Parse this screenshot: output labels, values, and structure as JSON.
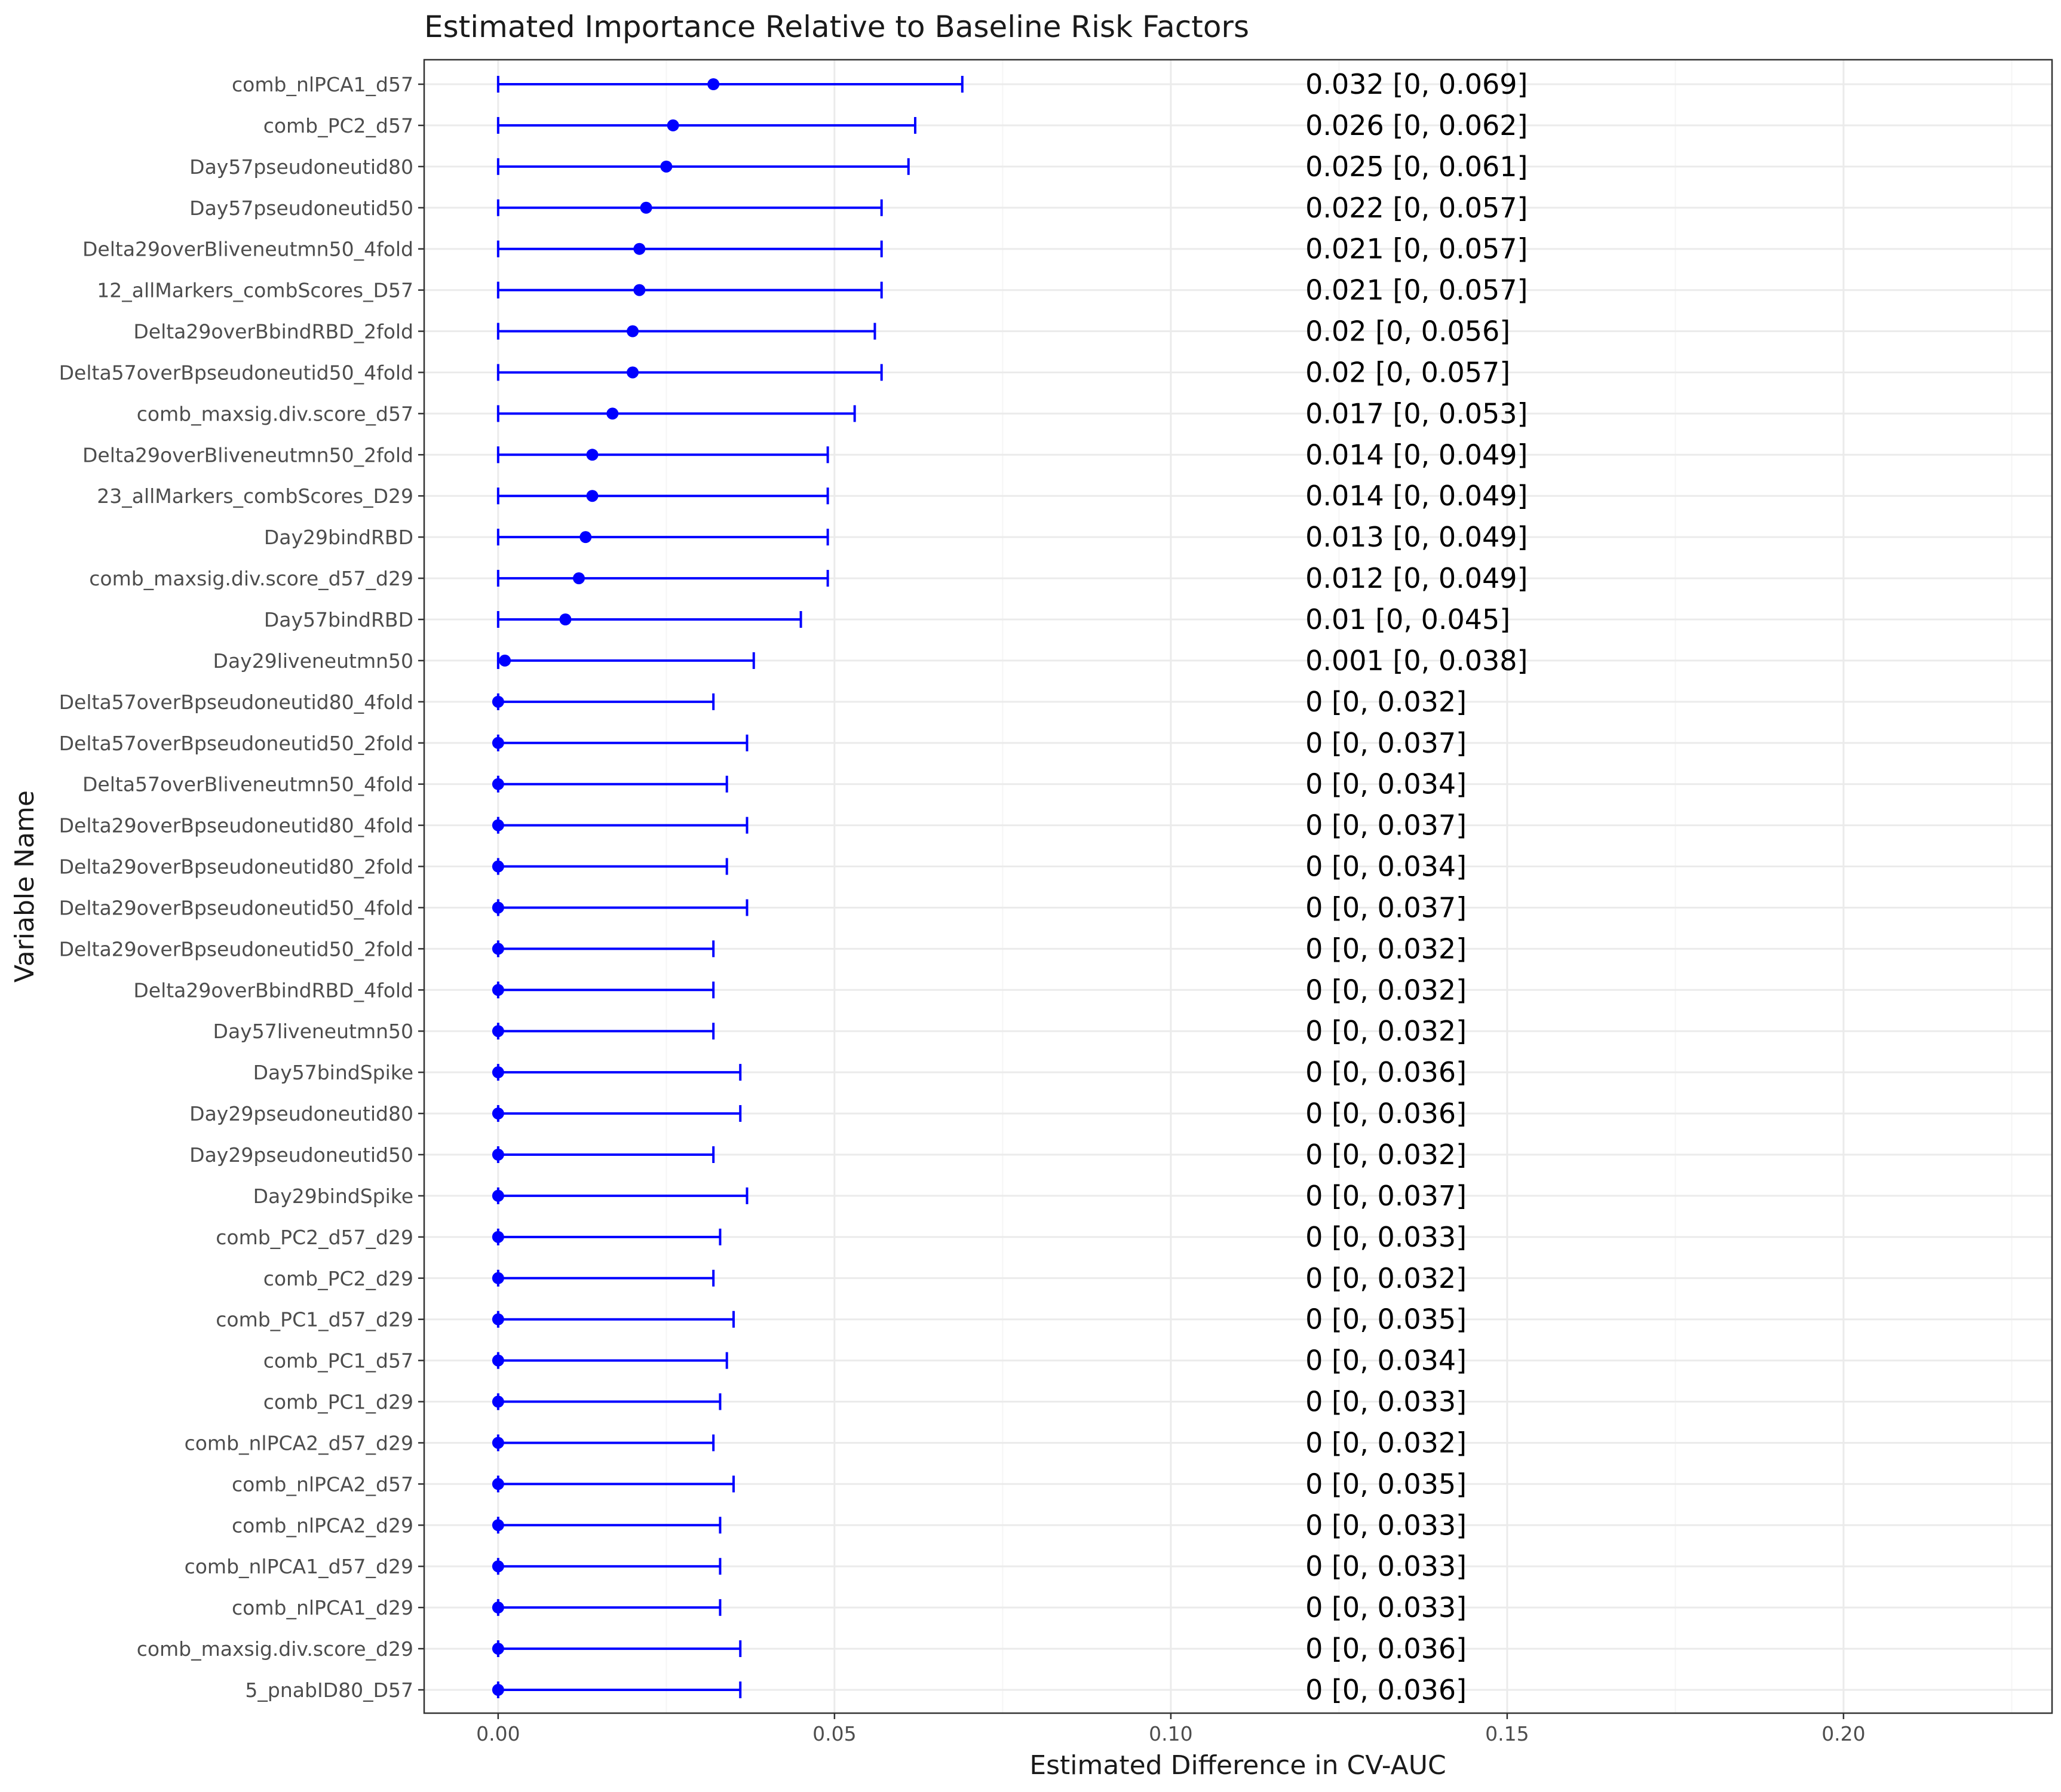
{
  "chart_data": {
    "type": "scatter",
    "subtype": "point-range with error bars",
    "title": "Estimated Importance Relative to Baseline Risk Factors",
    "xlabel": "Estimated Difference in CV-AUC",
    "ylabel": "Variable Name",
    "xlim": [
      -0.011,
      0.231
    ],
    "x_ticks": [
      0.0,
      0.05,
      0.1,
      0.15,
      0.2
    ],
    "x_tick_labels": [
      "0.00",
      "0.05",
      "0.10",
      "0.15",
      "0.20"
    ],
    "grid": true,
    "label_column_x": 0.12,
    "colors": {
      "series": "#0000ff",
      "label_text": "#000000",
      "tick_text": "#4d4d4d",
      "grid": "#ebebeb"
    },
    "series": [
      {
        "categories": [
          "comb_nlPCA1_d57",
          "comb_PC2_d57",
          "Day57pseudoneutid80",
          "Day57pseudoneutid50",
          "Delta29overBliveneutmn50_4fold",
          "12_allMarkers_combScores_D57",
          "Delta29overBbindRBD_2fold",
          "Delta57overBpseudoneutid50_4fold",
          "comb_maxsig.div.score_d57",
          "Delta29overBliveneutmn50_2fold",
          "23_allMarkers_combScores_D29",
          "Day29bindRBD",
          "comb_maxsig.div.score_d57_d29",
          "Day57bindRBD",
          "Day29liveneutmn50",
          "Delta57overBpseudoneutid80_4fold",
          "Delta57overBpseudoneutid50_2fold",
          "Delta57overBliveneutmn50_4fold",
          "Delta29overBpseudoneutid80_4fold",
          "Delta29overBpseudoneutid80_2fold",
          "Delta29overBpseudoneutid50_4fold",
          "Delta29overBpseudoneutid50_2fold",
          "Delta29overBbindRBD_4fold",
          "Day57liveneutmn50",
          "Day57bindSpike",
          "Day29pseudoneutid80",
          "Day29pseudoneutid50",
          "Day29bindSpike",
          "comb_PC2_d57_d29",
          "comb_PC2_d29",
          "comb_PC1_d57_d29",
          "comb_PC1_d57",
          "comb_PC1_d29",
          "comb_nlPCA2_d57_d29",
          "comb_nlPCA2_d57",
          "comb_nlPCA2_d29",
          "comb_nlPCA1_d57_d29",
          "comb_nlPCA1_d29",
          "comb_maxsig.div.score_d29",
          "5_pnabID80_D57"
        ],
        "estimate": [
          0.032,
          0.026,
          0.025,
          0.022,
          0.021,
          0.021,
          0.02,
          0.02,
          0.017,
          0.014,
          0.014,
          0.013,
          0.012,
          0.01,
          0.001,
          0,
          0,
          0,
          0,
          0,
          0,
          0,
          0,
          0,
          0,
          0,
          0,
          0,
          0,
          0,
          0,
          0,
          0,
          0,
          0,
          0,
          0,
          0,
          0,
          0
        ],
        "ci_lower": [
          0,
          0,
          0,
          0,
          0,
          0,
          0,
          0,
          0,
          0,
          0,
          0,
          0,
          0,
          0,
          0,
          0,
          0,
          0,
          0,
          0,
          0,
          0,
          0,
          0,
          0,
          0,
          0,
          0,
          0,
          0,
          0,
          0,
          0,
          0,
          0,
          0,
          0,
          0,
          0
        ],
        "ci_upper": [
          0.069,
          0.062,
          0.061,
          0.057,
          0.057,
          0.057,
          0.056,
          0.057,
          0.053,
          0.049,
          0.049,
          0.049,
          0.049,
          0.045,
          0.038,
          0.032,
          0.037,
          0.034,
          0.037,
          0.034,
          0.037,
          0.032,
          0.032,
          0.032,
          0.036,
          0.036,
          0.032,
          0.037,
          0.033,
          0.032,
          0.035,
          0.034,
          0.033,
          0.032,
          0.035,
          0.033,
          0.033,
          0.033,
          0.036,
          0.036
        ],
        "labels": [
          "0.032 [0, 0.069]",
          "0.026 [0, 0.062]",
          "0.025 [0, 0.061]",
          "0.022 [0, 0.057]",
          "0.021 [0, 0.057]",
          "0.021 [0, 0.057]",
          "0.02 [0, 0.056]",
          "0.02 [0, 0.057]",
          "0.017 [0, 0.053]",
          "0.014 [0, 0.049]",
          "0.014 [0, 0.049]",
          "0.013 [0, 0.049]",
          "0.012 [0, 0.049]",
          "0.01 [0, 0.045]",
          "0.001 [0, 0.038]",
          "0 [0, 0.032]",
          "0 [0, 0.037]",
          "0 [0, 0.034]",
          "0 [0, 0.037]",
          "0 [0, 0.034]",
          "0 [0, 0.037]",
          "0 [0, 0.032]",
          "0 [0, 0.032]",
          "0 [0, 0.032]",
          "0 [0, 0.036]",
          "0 [0, 0.036]",
          "0 [0, 0.032]",
          "0 [0, 0.037]",
          "0 [0, 0.033]",
          "0 [0, 0.032]",
          "0 [0, 0.035]",
          "0 [0, 0.034]",
          "0 [0, 0.033]",
          "0 [0, 0.032]",
          "0 [0, 0.035]",
          "0 [0, 0.033]",
          "0 [0, 0.033]",
          "0 [0, 0.033]",
          "0 [0, 0.036]",
          "0 [0, 0.036]"
        ]
      }
    ]
  }
}
